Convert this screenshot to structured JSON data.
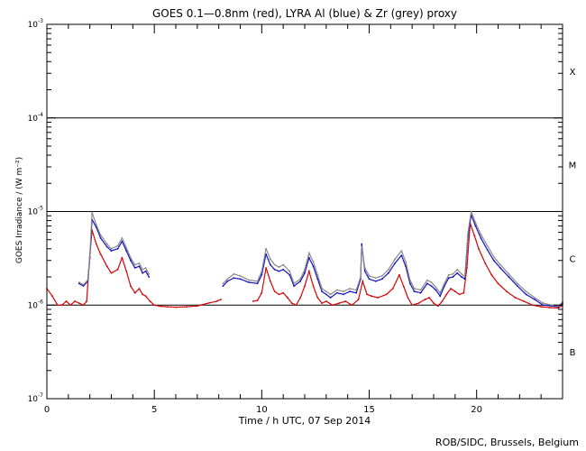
{
  "chart_data": {
    "type": "line",
    "title": "GOES 0.1—0.8nm (red), LYRA Al (blue) & Zr (grey) proxy",
    "xlabel": "Time / h UTC, 07 Sep 2014",
    "ylabel": "GOES Irradiance / (W m⁻²)",
    "credit": "ROB/SIDC, Brussels, Belgium",
    "xlim": [
      0,
      24
    ],
    "ylim": [
      1e-07,
      0.001
    ],
    "yscale": "log",
    "x_ticks": [
      0,
      5,
      10,
      15,
      20
    ],
    "x_tick_labels": [
      "0",
      "5",
      "10",
      "15",
      "20"
    ],
    "y_tick_labels": [
      {
        "value": 0.001,
        "base": "10",
        "exp": "-3"
      },
      {
        "value": 0.0001,
        "base": "10",
        "exp": "-4"
      },
      {
        "value": 1e-05,
        "base": "10",
        "exp": "-5"
      },
      {
        "value": 1e-06,
        "base": "10",
        "exp": "-6"
      },
      {
        "value": 1e-07,
        "base": "10",
        "exp": "-7"
      }
    ],
    "reference_lines": [
      0.0001,
      1e-05,
      1e-06
    ],
    "flare_classes": [
      {
        "label": "X",
        "value": 0.000316
      },
      {
        "label": "M",
        "value": 3.16e-05
      },
      {
        "label": "C",
        "value": 3.16e-06
      },
      {
        "label": "B",
        "value": 3.16e-07
      }
    ],
    "series": [
      {
        "color": "#d40000",
        "segments": [
          [
            [
              0.0,
              1.5e-06
            ],
            [
              0.25,
              1.25e-06
            ],
            [
              0.5,
              1e-06
            ],
            [
              0.7,
              1e-06
            ],
            [
              0.9,
              1.1e-06
            ],
            [
              1.1,
              1e-06
            ],
            [
              1.3,
              1.1e-06
            ],
            [
              1.5,
              1.05e-06
            ],
            [
              1.7,
              1e-06
            ],
            [
              1.85,
              1.1e-06
            ],
            [
              2.0,
              3.5e-06
            ],
            [
              2.1,
              6.3e-06
            ],
            [
              2.3,
              4.5e-06
            ],
            [
              2.5,
              3.5e-06
            ],
            [
              2.8,
              2.6e-06
            ],
            [
              3.0,
              2.2e-06
            ],
            [
              3.3,
              2.4e-06
            ],
            [
              3.5,
              3.2e-06
            ],
            [
              3.7,
              2.3e-06
            ],
            [
              3.9,
              1.6e-06
            ],
            [
              4.1,
              1.35e-06
            ],
            [
              4.3,
              1.5e-06
            ],
            [
              4.45,
              1.3e-06
            ],
            [
              4.6,
              1.25e-06
            ],
            [
              4.8,
              1.1e-06
            ],
            [
              5.0,
              1e-06
            ],
            [
              5.3,
              9.7e-07
            ],
            [
              5.6,
              9.6e-07
            ],
            [
              6.0,
              9.5e-07
            ],
            [
              6.5,
              9.6e-07
            ],
            [
              7.0,
              9.8e-07
            ],
            [
              7.5,
              1.05e-06
            ],
            [
              7.9,
              1.1e-06
            ],
            [
              8.1,
              1.15e-06
            ]
          ],
          [
            [
              9.6,
              1.1e-06
            ],
            [
              9.8,
              1.12e-06
            ],
            [
              10.0,
              1.35e-06
            ],
            [
              10.2,
              2.5e-06
            ],
            [
              10.4,
              1.8e-06
            ],
            [
              10.6,
              1.4e-06
            ],
            [
              10.8,
              1.3e-06
            ],
            [
              11.0,
              1.35e-06
            ],
            [
              11.2,
              1.2e-06
            ],
            [
              11.4,
              1.05e-06
            ],
            [
              11.6,
              1e-06
            ],
            [
              11.8,
              1.2e-06
            ],
            [
              12.0,
              1.6e-06
            ],
            [
              12.2,
              2.3e-06
            ],
            [
              12.4,
              1.6e-06
            ],
            [
              12.6,
              1.2e-06
            ],
            [
              12.8,
              1.05e-06
            ],
            [
              13.0,
              1.1e-06
            ],
            [
              13.3,
              1e-06
            ],
            [
              13.6,
              1.05e-06
            ],
            [
              13.9,
              1.1e-06
            ],
            [
              14.2,
              1e-06
            ],
            [
              14.5,
              1.15e-06
            ],
            [
              14.7,
              1.8e-06
            ],
            [
              14.9,
              1.3e-06
            ],
            [
              15.1,
              1.25e-06
            ],
            [
              15.4,
              1.2e-06
            ],
            [
              15.8,
              1.3e-06
            ],
            [
              16.1,
              1.5e-06
            ],
            [
              16.4,
              2.1e-06
            ],
            [
              16.6,
              1.6e-06
            ],
            [
              16.8,
              1.2e-06
            ],
            [
              17.0,
              1e-06
            ],
            [
              17.3,
              1.05e-06
            ],
            [
              17.6,
              1.15e-06
            ],
            [
              17.8,
              1.2e-06
            ],
            [
              18.0,
              1.05e-06
            ],
            [
              18.2,
              9.8e-07
            ],
            [
              18.4,
              1.1e-06
            ],
            [
              18.6,
              1.3e-06
            ],
            [
              18.8,
              1.5e-06
            ],
            [
              19.0,
              1.4e-06
            ],
            [
              19.2,
              1.3e-06
            ],
            [
              19.4,
              1.35e-06
            ],
            [
              19.55,
              2.5e-06
            ],
            [
              19.7,
              7.5e-06
            ],
            [
              19.9,
              5.5e-06
            ],
            [
              20.1,
              4e-06
            ],
            [
              20.4,
              2.8e-06
            ],
            [
              20.7,
              2.1e-06
            ],
            [
              21.0,
              1.7e-06
            ],
            [
              21.4,
              1.4e-06
            ],
            [
              21.8,
              1.2e-06
            ],
            [
              22.2,
              1.1e-06
            ],
            [
              22.6,
              1e-06
            ],
            [
              23.0,
              9.6e-07
            ],
            [
              23.4,
              9.4e-07
            ],
            [
              23.8,
              9.3e-07
            ],
            [
              24.0,
              1e-06
            ]
          ]
        ]
      },
      {
        "color": "#1010c0",
        "segments": [
          [
            [
              1.5,
              1.7e-06
            ],
            [
              1.7,
              1.6e-06
            ],
            [
              1.9,
              1.8e-06
            ],
            [
              2.0,
              3.2e-06
            ],
            [
              2.1,
              8.2e-06
            ],
            [
              2.3,
              6.8e-06
            ],
            [
              2.5,
              5.2e-06
            ],
            [
              2.8,
              4.2e-06
            ],
            [
              3.0,
              3.8e-06
            ],
            [
              3.3,
              4e-06
            ],
            [
              3.5,
              4.8e-06
            ],
            [
              3.7,
              3.8e-06
            ],
            [
              3.9,
              3e-06
            ],
            [
              4.1,
              2.5e-06
            ],
            [
              4.3,
              2.6e-06
            ],
            [
              4.45,
              2.2e-06
            ],
            [
              4.6,
              2.3e-06
            ],
            [
              4.75,
              2e-06
            ]
          ],
          [
            [
              8.2,
              1.6e-06
            ],
            [
              8.4,
              1.8e-06
            ],
            [
              8.7,
              1.95e-06
            ],
            [
              9.0,
              1.9e-06
            ],
            [
              9.4,
              1.75e-06
            ],
            [
              9.8,
              1.7e-06
            ],
            [
              10.0,
              2.1e-06
            ],
            [
              10.2,
              3.5e-06
            ],
            [
              10.4,
              2.7e-06
            ],
            [
              10.6,
              2.4e-06
            ],
            [
              10.8,
              2.3e-06
            ],
            [
              11.0,
              2.4e-06
            ],
            [
              11.3,
              2.1e-06
            ],
            [
              11.5,
              1.6e-06
            ],
            [
              11.8,
              1.8e-06
            ],
            [
              12.0,
              2.2e-06
            ],
            [
              12.2,
              3.2e-06
            ],
            [
              12.4,
              2.6e-06
            ],
            [
              12.6,
              1.9e-06
            ],
            [
              12.8,
              1.4e-06
            ],
            [
              13.0,
              1.3e-06
            ],
            [
              13.2,
              1.2e-06
            ],
            [
              13.5,
              1.35e-06
            ],
            [
              13.8,
              1.3e-06
            ],
            [
              14.1,
              1.4e-06
            ],
            [
              14.4,
              1.35e-06
            ],
            [
              14.6,
              1.9e-06
            ],
            [
              14.65,
              4.5e-06
            ],
            [
              14.8,
              2.3e-06
            ],
            [
              15.0,
              1.9e-06
            ],
            [
              15.3,
              1.8e-06
            ],
            [
              15.6,
              1.9e-06
            ],
            [
              15.9,
              2.2e-06
            ],
            [
              16.2,
              2.8e-06
            ],
            [
              16.5,
              3.4e-06
            ],
            [
              16.7,
              2.6e-06
            ],
            [
              16.9,
              1.7e-06
            ],
            [
              17.1,
              1.4e-06
            ],
            [
              17.4,
              1.35e-06
            ],
            [
              17.7,
              1.7e-06
            ],
            [
              17.9,
              1.6e-06
            ],
            [
              18.1,
              1.45e-06
            ],
            [
              18.3,
              1.25e-06
            ],
            [
              18.5,
              1.6e-06
            ],
            [
              18.7,
              1.95e-06
            ],
            [
              18.9,
              2e-06
            ],
            [
              19.1,
              2.2e-06
            ],
            [
              19.3,
              2e-06
            ],
            [
              19.45,
              1.9e-06
            ],
            [
              19.6,
              5.5e-06
            ],
            [
              19.75,
              9.2e-06
            ],
            [
              19.95,
              7e-06
            ],
            [
              20.2,
              5.2e-06
            ],
            [
              20.5,
              3.9e-06
            ],
            [
              20.8,
              3e-06
            ],
            [
              21.1,
              2.5e-06
            ],
            [
              21.5,
              2e-06
            ],
            [
              21.9,
              1.6e-06
            ],
            [
              22.3,
              1.3e-06
            ],
            [
              22.7,
              1.15e-06
            ],
            [
              23.1,
              1e-06
            ],
            [
              23.5,
              9.8e-07
            ],
            [
              23.8,
              9.6e-07
            ],
            [
              24.0,
              1.05e-06
            ]
          ]
        ]
      },
      {
        "color": "#888888",
        "segments": [
          [
            [
              1.5,
              1.75e-06
            ],
            [
              1.7,
              1.65e-06
            ],
            [
              1.9,
              1.85e-06
            ],
            [
              2.0,
              3.4e-06
            ],
            [
              2.1,
              9.8e-06
            ],
            [
              2.3,
              7.2e-06
            ],
            [
              2.5,
              5.6e-06
            ],
            [
              2.8,
              4.5e-06
            ],
            [
              3.0,
              4e-06
            ],
            [
              3.3,
              4.3e-06
            ],
            [
              3.5,
              5.2e-06
            ],
            [
              3.7,
              4.1e-06
            ],
            [
              3.9,
              3.2e-06
            ],
            [
              4.1,
              2.7e-06
            ],
            [
              4.3,
              2.8e-06
            ],
            [
              4.45,
              2.4e-06
            ],
            [
              4.6,
              2.5e-06
            ],
            [
              4.75,
              2.15e-06
            ]
          ],
          [
            [
              8.2,
              1.7e-06
            ],
            [
              8.4,
              1.9e-06
            ],
            [
              8.7,
              2.15e-06
            ],
            [
              9.0,
              2.05e-06
            ],
            [
              9.4,
              1.85e-06
            ],
            [
              9.8,
              1.8e-06
            ],
            [
              10.0,
              2.3e-06
            ],
            [
              10.2,
              4e-06
            ],
            [
              10.4,
              3.1e-06
            ],
            [
              10.6,
              2.7e-06
            ],
            [
              10.8,
              2.55e-06
            ],
            [
              11.0,
              2.7e-06
            ],
            [
              11.3,
              2.3e-06
            ],
            [
              11.5,
              1.7e-06
            ],
            [
              11.8,
              1.9e-06
            ],
            [
              12.0,
              2.4e-06
            ],
            [
              12.2,
              3.6e-06
            ],
            [
              12.4,
              2.9e-06
            ],
            [
              12.6,
              2.1e-06
            ],
            [
              12.8,
              1.5e-06
            ],
            [
              13.0,
              1.4e-06
            ],
            [
              13.2,
              1.3e-06
            ],
            [
              13.5,
              1.45e-06
            ],
            [
              13.8,
              1.4e-06
            ],
            [
              14.1,
              1.5e-06
            ],
            [
              14.4,
              1.45e-06
            ],
            [
              14.6,
              2e-06
            ],
            [
              14.65,
              4.2e-06
            ],
            [
              14.8,
              2.5e-06
            ],
            [
              15.0,
              2.05e-06
            ],
            [
              15.3,
              1.95e-06
            ],
            [
              15.6,
              2.05e-06
            ],
            [
              15.9,
              2.4e-06
            ],
            [
              16.2,
              3.1e-06
            ],
            [
              16.5,
              3.8e-06
            ],
            [
              16.7,
              2.9e-06
            ],
            [
              16.9,
              1.85e-06
            ],
            [
              17.1,
              1.5e-06
            ],
            [
              17.4,
              1.45e-06
            ],
            [
              17.7,
              1.85e-06
            ],
            [
              17.9,
              1.75e-06
            ],
            [
              18.1,
              1.55e-06
            ],
            [
              18.3,
              1.35e-06
            ],
            [
              18.5,
              1.7e-06
            ],
            [
              18.7,
              2.1e-06
            ],
            [
              18.9,
              2.15e-06
            ],
            [
              19.1,
              2.4e-06
            ],
            [
              19.3,
              2.15e-06
            ],
            [
              19.45,
              2e-06
            ],
            [
              19.6,
              6e-06
            ],
            [
              19.75,
              1e-05
            ],
            [
              19.95,
              7.6e-06
            ],
            [
              20.2,
              5.7e-06
            ],
            [
              20.5,
              4.3e-06
            ],
            [
              20.8,
              3.3e-06
            ],
            [
              21.1,
              2.7e-06
            ],
            [
              21.5,
              2.15e-06
            ],
            [
              21.9,
              1.7e-06
            ],
            [
              22.3,
              1.4e-06
            ],
            [
              22.7,
              1.2e-06
            ],
            [
              23.1,
              1.05e-06
            ],
            [
              23.5,
              1e-06
            ],
            [
              23.8,
              9.8e-07
            ],
            [
              24.0,
              1.08e-06
            ]
          ]
        ]
      }
    ]
  }
}
